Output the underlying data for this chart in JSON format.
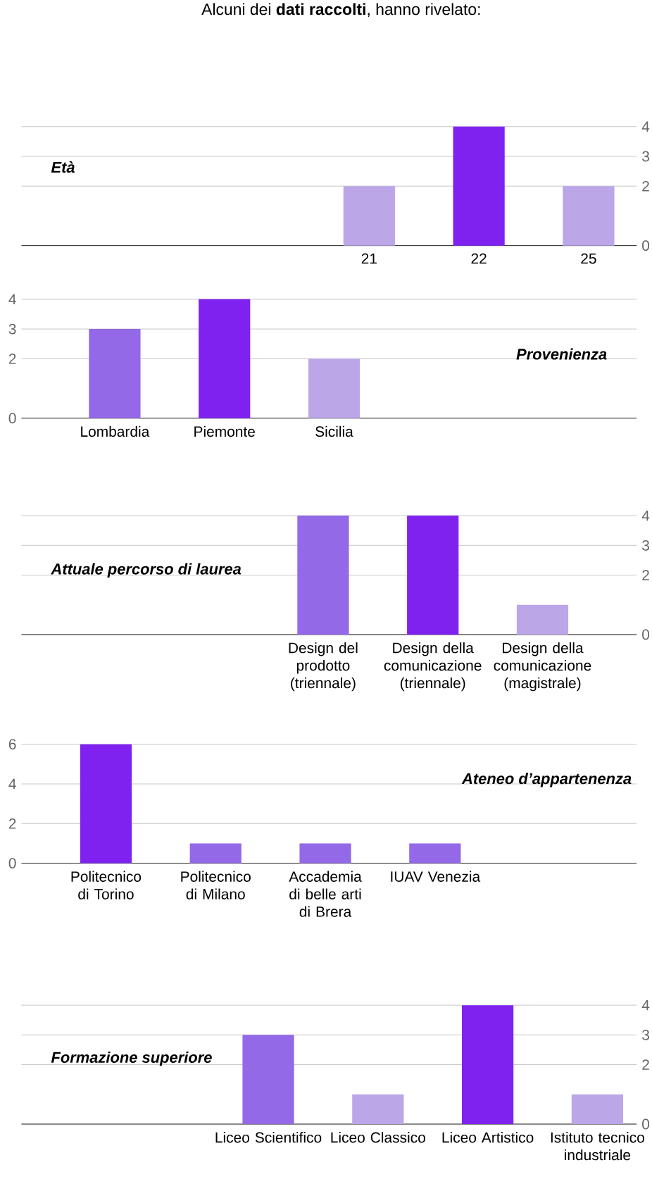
{
  "chart_data": [
    {
      "type": "bar",
      "ylabel": "Età",
      "annotations": [
        "Alcuni dei **dati raccolti**, hanno rivelato:"
      ],
      "categories": [
        "21",
        "22",
        "25"
      ],
      "values": [
        2,
        4,
        2
      ],
      "colors": [
        "#bba6e8",
        "#7f22f0",
        "#bba6e8"
      ],
      "ylim": [
        0,
        4
      ],
      "yticks": [
        0,
        2,
        3,
        4
      ],
      "grid": "y"
    },
    {
      "type": "bar",
      "ylabel": "Provenienza",
      "categories": [
        "Lombardia",
        "Piemonte",
        "Sicilia"
      ],
      "values": [
        3,
        4,
        2
      ],
      "colors": [
        "#9369e8",
        "#7f22f0",
        "#bba6e8"
      ],
      "ylim": [
        0,
        4
      ],
      "yticks": [
        0,
        2,
        3,
        4
      ],
      "grid": "y"
    },
    {
      "type": "bar",
      "ylabel": "Attuale percorso di laurea",
      "categories": [
        "Design del prodotto (triennale)",
        "Design della comunicazione (triennale)",
        "Design della comunicazione (magistrale)"
      ],
      "values": [
        4,
        4,
        1
      ],
      "colors": [
        "#9369e8",
        "#7f22f0",
        "#bba6e8"
      ],
      "ylim": [
        0,
        4
      ],
      "yticks": [
        0,
        2,
        3,
        4
      ],
      "grid": "y"
    },
    {
      "type": "bar",
      "ylabel": "Ateneo d’appartenenza",
      "categories": [
        "Politecnico di Torino",
        "Politecnico di Milano",
        "Accademia di belle arti di Brera",
        "IUAV Venezia"
      ],
      "values": [
        6,
        1,
        1,
        1
      ],
      "colors": [
        "#7f22f0",
        "#9369e8",
        "#9369e8",
        "#9369e8"
      ],
      "ylim": [
        0,
        6
      ],
      "yticks": [
        0,
        2,
        4,
        6
      ],
      "grid": "y"
    },
    {
      "type": "bar",
      "ylabel": "Formazione superiore",
      "categories": [
        "Liceo Scientifico",
        "Liceo Classico",
        "Liceo Artistico",
        "Istituto tecnico industriale"
      ],
      "values": [
        3,
        1,
        4,
        1
      ],
      "colors": [
        "#9369e8",
        "#bba6e8",
        "#7f22f0",
        "#bba6e8"
      ],
      "ylim": [
        0,
        4
      ],
      "yticks": [
        0,
        2,
        3,
        4
      ],
      "grid": "y"
    }
  ]
}
